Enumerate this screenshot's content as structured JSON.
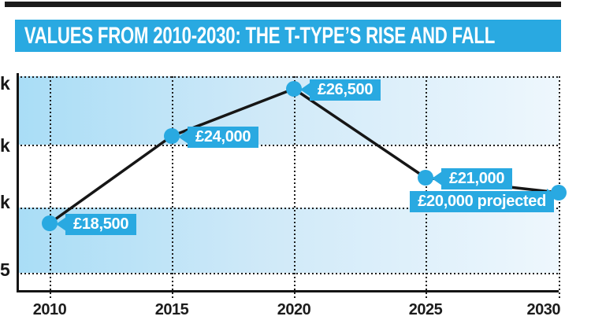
{
  "header": {
    "title": "VALUES FROM 2010-2030: THE T-TYPE’S RISE AND FALL"
  },
  "chart_data": {
    "type": "line",
    "title": "VALUES FROM 2010-2030: THE T-TYPE’S RISE AND FALL",
    "x": [
      2010,
      2015,
      2020,
      2025,
      2030
    ],
    "values": [
      18500,
      24000,
      26500,
      21000,
      20000
    ],
    "point_labels": [
      "£18,500",
      "£24,000",
      "£26,500",
      "£21,000",
      "£20,000 projected"
    ],
    "x_tick_labels": [
      "2010",
      "2015",
      "2020",
      "2025",
      "2030"
    ],
    "y_tick_label_fragments": [
      "k",
      "k",
      "k",
      "5"
    ],
    "last_point_projected": true,
    "grid": "dotted",
    "legend": "none",
    "colors": {
      "accent_blue": "#29A9E1",
      "band_blue": "#A9DDF6",
      "line_black": "#161616"
    }
  }
}
